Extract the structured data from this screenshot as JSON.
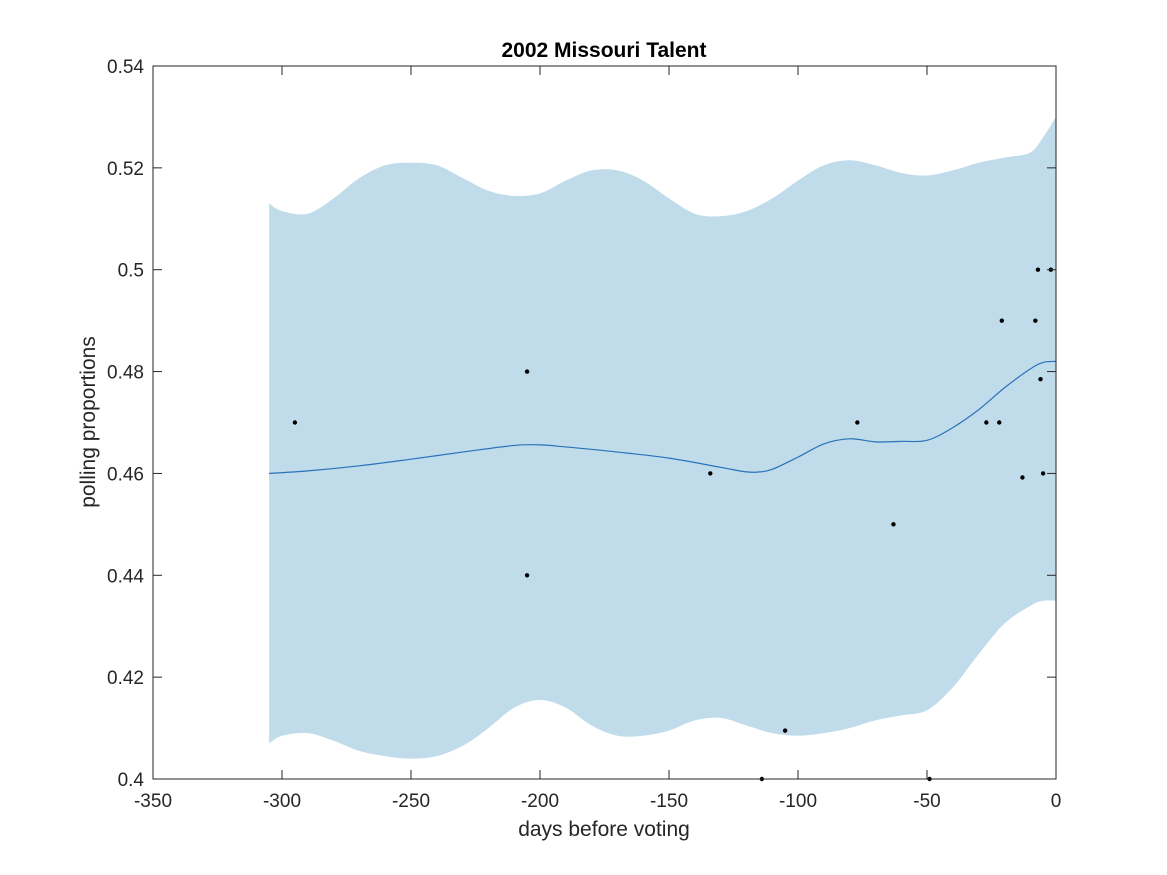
{
  "chart_data": {
    "type": "line",
    "title": "2002 Missouri Talent",
    "xlabel": "days before voting",
    "ylabel": "polling proportions",
    "xlim": [
      -350,
      0
    ],
    "ylim": [
      0.4,
      0.54
    ],
    "xticks": [
      -350,
      -300,
      -250,
      -200,
      -150,
      -100,
      -50,
      0
    ],
    "xtick_labels": [
      "-350",
      "-300",
      "-250",
      "-200",
      "-150",
      "-100",
      "-50",
      "0"
    ],
    "yticks": [
      0.4,
      0.42,
      0.44,
      0.46,
      0.48,
      0.5,
      0.52,
      0.54
    ],
    "ytick_labels": [
      "0.4",
      "0.42",
      "0.44",
      "0.46",
      "0.48",
      "0.5",
      "0.52",
      "0.54"
    ],
    "grid": false,
    "colors": {
      "band": "#c0dcea",
      "line": "#2a72b8",
      "points": "#000000",
      "axes": "#262626"
    },
    "band": {
      "x": [
        -305,
        -300,
        -290,
        -280,
        -270,
        -260,
        -250,
        -240,
        -230,
        -220,
        -210,
        -200,
        -190,
        -180,
        -170,
        -160,
        -150,
        -140,
        -130,
        -120,
        -110,
        -100,
        -90,
        -80,
        -70,
        -60,
        -50,
        -40,
        -30,
        -20,
        -10,
        -5,
        0
      ],
      "upper": [
        0.513,
        0.5115,
        0.511,
        0.514,
        0.518,
        0.5205,
        0.521,
        0.5205,
        0.518,
        0.5155,
        0.5145,
        0.515,
        0.5175,
        0.5195,
        0.5195,
        0.5175,
        0.514,
        0.511,
        0.5105,
        0.5115,
        0.514,
        0.5175,
        0.5205,
        0.5215,
        0.5205,
        0.519,
        0.5185,
        0.5195,
        0.521,
        0.522,
        0.523,
        0.526,
        0.53
      ],
      "lower": [
        0.407,
        0.4085,
        0.409,
        0.4075,
        0.4055,
        0.4045,
        0.404,
        0.4045,
        0.4065,
        0.41,
        0.414,
        0.4155,
        0.414,
        0.4105,
        0.4085,
        0.4085,
        0.4095,
        0.4115,
        0.412,
        0.4105,
        0.409,
        0.4085,
        0.409,
        0.41,
        0.4115,
        0.4125,
        0.4135,
        0.418,
        0.4245,
        0.4305,
        0.434,
        0.435,
        0.435
      ]
    },
    "series": [
      {
        "x": [
          -305,
          -290,
          -270,
          -250,
          -230,
          -210,
          -200,
          -190,
          -170,
          -150,
          -130,
          -120,
          -115,
          -110,
          -100,
          -90,
          -80,
          -70,
          -60,
          -50,
          -40,
          -30,
          -20,
          -10,
          -5,
          0
        ],
        "y": [
          0.46,
          0.4605,
          0.4615,
          0.4628,
          0.4642,
          0.4655,
          0.4656,
          0.4652,
          0.4642,
          0.463,
          0.4612,
          0.4603,
          0.4603,
          0.4608,
          0.4632,
          0.4658,
          0.4668,
          0.4662,
          0.4663,
          0.4665,
          0.469,
          0.4725,
          0.4768,
          0.4805,
          0.4818,
          0.482
        ]
      }
    ],
    "points": {
      "x": [
        -295,
        -205,
        -205,
        -134,
        -114,
        -105,
        -77,
        -63,
        -49,
        -27,
        -22,
        -21,
        -13,
        -8,
        -7,
        -6,
        -5,
        -2
      ],
      "y": [
        0.47,
        0.48,
        0.44,
        0.46,
        0.4,
        0.4095,
        0.47,
        0.45,
        0.4,
        0.47,
        0.47,
        0.49,
        0.4592,
        0.49,
        0.5,
        0.4785,
        0.46,
        0.5
      ]
    }
  }
}
